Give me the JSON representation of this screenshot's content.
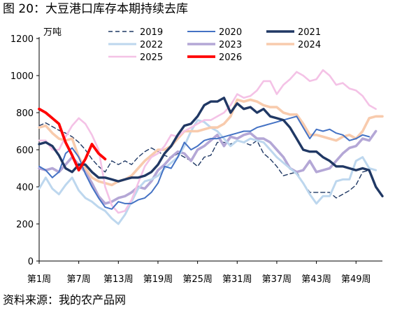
{
  "title": "图 20：大豆港口库存本期持续去库",
  "source": "资料来源：我的农产品网",
  "chart_data": {
    "type": "line",
    "ylabel": "万吨",
    "ylim": [
      0,
      1200
    ],
    "yticks": [
      0,
      200,
      400,
      600,
      800,
      1000,
      1200
    ],
    "xlim": [
      1,
      53
    ],
    "xticks": [
      {
        "x": 1,
        "label": "第1周"
      },
      {
        "x": 7,
        "label": "第7周"
      },
      {
        "x": 13,
        "label": "第13周"
      },
      {
        "x": 19,
        "label": "第19周"
      },
      {
        "x": 25,
        "label": "第25周"
      },
      {
        "x": 31,
        "label": "第31周"
      },
      {
        "x": 37,
        "label": "第37周"
      },
      {
        "x": 43,
        "label": "第43周"
      },
      {
        "x": 49,
        "label": "第49周"
      }
    ],
    "legend": "top, 3 columns",
    "series": [
      {
        "name": "2019",
        "color": "#1f3864",
        "width": 1.4,
        "dash": "6,4",
        "values": [
          730,
          745,
          725,
          705,
          690,
          670,
          640,
          600,
          550,
          510,
          480,
          540,
          520,
          540,
          520,
          560,
          590,
          610,
          590,
          570,
          555,
          580,
          560,
          540,
          510,
          560,
          570,
          640,
          640,
          630,
          650,
          640,
          625,
          650,
          580,
          550,
          510,
          460,
          470,
          480,
          420,
          370,
          370,
          370,
          370,
          340,
          360,
          380,
          410,
          480,
          490
        ]
      },
      {
        "name": "2020",
        "color": "#4472c4",
        "width": 2.0,
        "values": [
          510,
          490,
          450,
          480,
          580,
          610,
          560,
          470,
          400,
          340,
          290,
          280,
          320,
          310,
          310,
          330,
          340,
          370,
          420,
          510,
          500,
          560,
          640,
          600,
          620,
          650,
          660,
          660,
          670,
          680,
          690,
          700,
          700,
          720,
          730,
          740,
          750,
          760,
          770,
          780,
          720,
          660,
          710,
          700,
          710,
          690,
          680,
          650,
          660,
          680,
          670
        ]
      },
      {
        "name": "2021",
        "color": "#203864",
        "width": 3.4,
        "values": [
          630,
          640,
          620,
          570,
          500,
          480,
          520,
          520,
          480,
          450,
          450,
          440,
          430,
          440,
          450,
          450,
          460,
          480,
          520,
          580,
          620,
          680,
          730,
          740,
          780,
          840,
          860,
          860,
          880,
          800,
          850,
          820,
          830,
          800,
          820,
          780,
          770,
          760,
          720,
          660,
          600,
          590,
          590,
          560,
          540,
          510,
          510,
          500,
          490,
          500,
          490,
          400,
          350
        ]
      },
      {
        "name": "2022",
        "color": "#bdd7ee",
        "width": 3.0,
        "values": [
          390,
          450,
          390,
          360,
          410,
          450,
          380,
          340,
          320,
          290,
          270,
          230,
          200,
          250,
          320,
          390,
          430,
          440,
          460,
          500,
          530,
          560,
          620,
          700,
          760,
          750,
          720,
          700,
          660,
          620,
          650,
          640,
          660,
          650,
          640,
          600,
          560,
          530,
          500,
          470,
          420,
          360,
          310,
          350,
          350,
          430,
          440,
          440,
          540,
          560,
          500,
          490
        ]
      },
      {
        "name": "2023",
        "color": "#b4a7d6",
        "width": 3.6,
        "values": [
          500,
          490,
          500,
          480,
          520,
          560,
          520,
          480,
          420,
          350,
          310,
          320,
          340,
          350,
          370,
          400,
          390,
          430,
          490,
          520,
          560,
          590,
          580,
          540,
          600,
          620,
          650,
          680,
          620,
          670,
          660,
          680,
          690,
          660,
          660,
          640,
          600,
          560,
          500,
          480,
          490,
          540,
          480,
          490,
          500,
          540,
          580,
          610,
          620,
          660,
          650,
          700
        ]
      },
      {
        "name": "2024",
        "color": "#f8cbad",
        "width": 3.6,
        "values": [
          720,
          730,
          690,
          660,
          650,
          660,
          560,
          500,
          450,
          430,
          420,
          410,
          430,
          440,
          460,
          500,
          540,
          570,
          600,
          600,
          620,
          660,
          700,
          700,
          700,
          710,
          720,
          720,
          740,
          780,
          870,
          860,
          870,
          860,
          840,
          830,
          830,
          800,
          790,
          790,
          740,
          680,
          680,
          670,
          660,
          650,
          670,
          680,
          660,
          700,
          770,
          780,
          780
        ]
      },
      {
        "name": "2025",
        "color": "#f4c2e6",
        "width": 2.6,
        "values": [
          650,
          650,
          600,
          600,
          670,
          730,
          770,
          740,
          680,
          600,
          400,
          300,
          260,
          270,
          330,
          420,
          510,
          560,
          580,
          620,
          680,
          670,
          700,
          720,
          740,
          760,
          760,
          780,
          800,
          840,
          900,
          880,
          890,
          920,
          970,
          970,
          900,
          950,
          980,
          1020,
          1000,
          970,
          980,
          1030,
          1000,
          950,
          960,
          930,
          920,
          890,
          840,
          820
        ]
      },
      {
        "name": "2026",
        "color": "#ff0000",
        "width": 3.8,
        "values": [
          820,
          800,
          770,
          740,
          640,
          570,
          490,
          550,
          630,
          580,
          550
        ]
      }
    ]
  }
}
